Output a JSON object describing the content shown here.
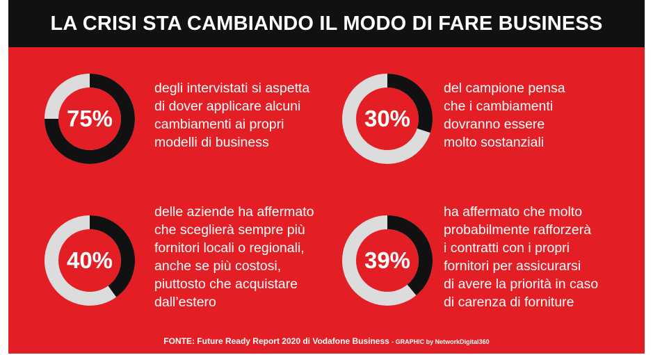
{
  "header": {
    "title": "LA CRISI STA CAMBIANDO IL MODO DI FARE BUSINESS"
  },
  "colors": {
    "background": "#e31e24",
    "header": "#111111",
    "filled": "#111111",
    "track": "#dcdcdc",
    "text": "#ffffff"
  },
  "chart_data": {
    "type": "pie",
    "title": "LA CRISI STA CAMBIANDO IL MODO DI FARE BUSINESS",
    "stats": [
      {
        "label": "75%",
        "value": 75,
        "lines": [
          "degli intervistati si aspetta",
          "di dover applicare alcuni",
          "cambiamenti ai propri",
          "modelli di business"
        ]
      },
      {
        "label": "30%",
        "value": 30,
        "lines": [
          "del campione pensa",
          "che i cambiamenti",
          "dovranno essere",
          "molto sostanziali"
        ]
      },
      {
        "label": "40%",
        "value": 40,
        "lines": [
          "delle aziende ha affermato",
          "che sceglierà sempre più",
          "fornitori locali o regionali,",
          "anche se più costosi,",
          "piuttosto che acquistare",
          "dall’estero"
        ]
      },
      {
        "label": "39%",
        "value": 39,
        "lines": [
          "ha affermato che molto",
          "probabilmente rafforzerà",
          "i contratti con i propri",
          "fornitori per assicurarsi",
          "di avere la priorità in caso",
          "di carenza di forniture"
        ]
      }
    ]
  },
  "footer": {
    "source": "FONTE: Future Ready Report 2020 di Vodafone Business",
    "credit": "- GRAPHIC by NetworkDigital360"
  }
}
